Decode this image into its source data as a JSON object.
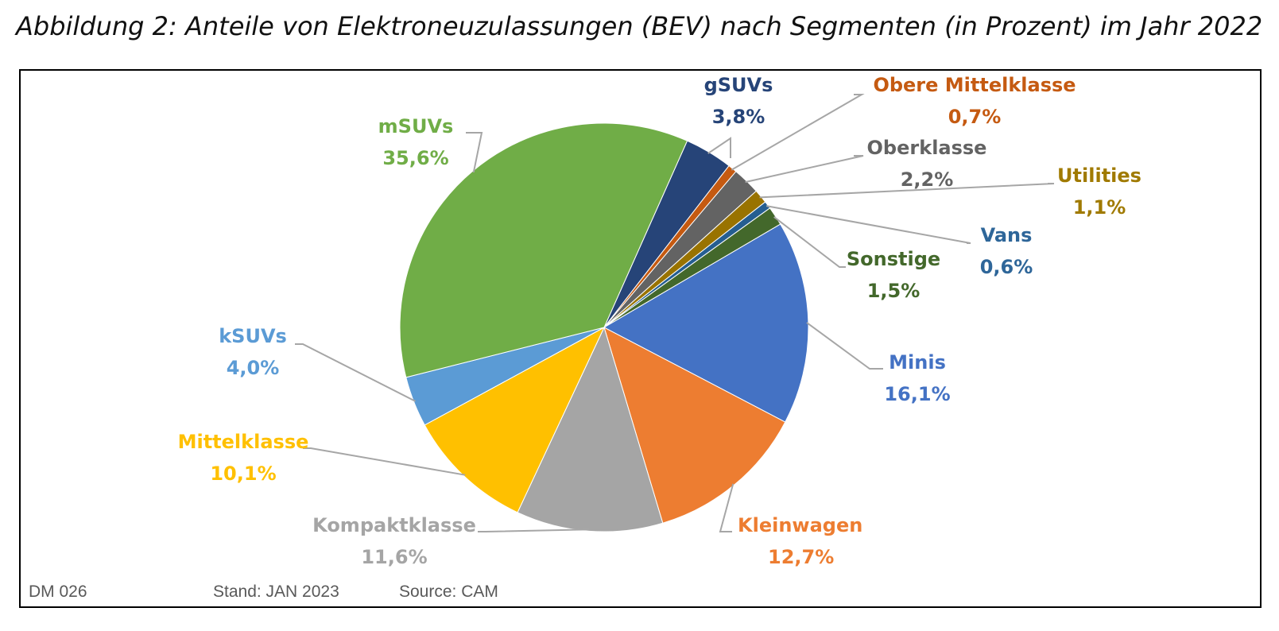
{
  "title": "Abbildung 2: Anteile von Elektroneuzulassungen (BEV) nach Segmenten (in Prozent) im Jahr 2022",
  "footer": {
    "code": "DM 026",
    "stand": "Stand: JAN 2023",
    "source": "Source: CAM"
  },
  "chart_data": {
    "type": "pie",
    "start_angle_deg": 24,
    "direction": "clockwise",
    "slices": [
      {
        "name": "gSUVs",
        "pct_label": "3,8%",
        "value": 3.8,
        "color": "#264478",
        "label_color": "#264478"
      },
      {
        "name": "Obere Mittelklasse",
        "pct_label": "0,7%",
        "value": 0.7,
        "color": "#C55A11",
        "label_color": "#C55A11"
      },
      {
        "name": "Oberklasse",
        "pct_label": "2,2%",
        "value": 2.2,
        "color": "#636363",
        "label_color": "#636363"
      },
      {
        "name": "Utilities",
        "pct_label": "1,1%",
        "value": 1.1,
        "color": "#997300",
        "label_color": "#A07A00"
      },
      {
        "name": "Vans",
        "pct_label": "0,6%",
        "value": 0.6,
        "color": "#255E91",
        "label_color": "#2E6699"
      },
      {
        "name": "Sonstige",
        "pct_label": "1,5%",
        "value": 1.5,
        "color": "#43682B",
        "label_color": "#43682B"
      },
      {
        "name": "Minis",
        "pct_label": "16,1%",
        "value": 16.1,
        "color": "#4472C4",
        "label_color": "#4472C4"
      },
      {
        "name": "Kleinwagen",
        "pct_label": "12,7%",
        "value": 12.7,
        "color": "#ED7D31",
        "label_color": "#ED7D31"
      },
      {
        "name": "Kompaktklasse",
        "pct_label": "11,6%",
        "value": 11.6,
        "color": "#A5A5A5",
        "label_color": "#A5A5A5"
      },
      {
        "name": "Mittelklasse",
        "pct_label": "10,1%",
        "value": 10.1,
        "color": "#FFC000",
        "label_color": "#FFC000"
      },
      {
        "name": "kSUVs",
        "pct_label": "4,0%",
        "value": 4.0,
        "color": "#5B9BD5",
        "label_color": "#5B9BD5"
      },
      {
        "name": "mSUVs",
        "pct_label": "35,6%",
        "value": 35.6,
        "color": "#70AD47",
        "label_color": "#70AD47"
      }
    ]
  }
}
